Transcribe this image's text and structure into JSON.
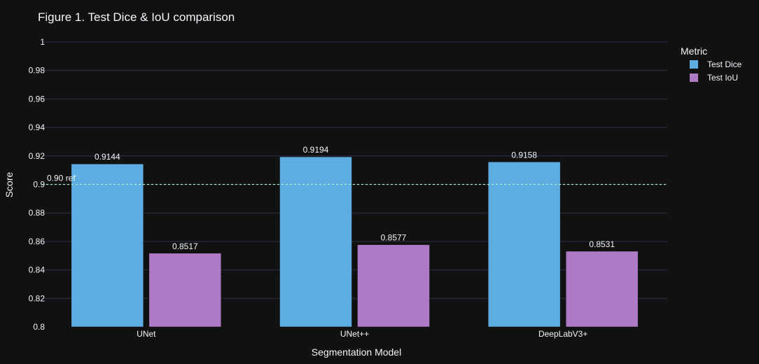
{
  "chart_data": {
    "type": "bar",
    "title": "Figure 1. Test Dice & IoU comparison",
    "xlabel": "Segmentation Model",
    "ylabel": "Score",
    "ylim": [
      0.8,
      1.0
    ],
    "yticks": [
      "0.8",
      "0.82",
      "0.84",
      "0.86",
      "0.88",
      "0.9",
      "0.92",
      "0.94",
      "0.96",
      "0.98",
      "1"
    ],
    "categories": [
      "UNet",
      "UNet++",
      "DeepLabV3+"
    ],
    "series": [
      {
        "name": "Test Dice",
        "values": [
          0.9144,
          0.9194,
          0.9158
        ],
        "labels": [
          "0.9144",
          "0.9194",
          "0.9158"
        ],
        "color": "#5dade2"
      },
      {
        "name": "Test IoU",
        "values": [
          0.8517,
          0.8577,
          0.8531
        ],
        "labels": [
          "0.8517",
          "0.8577",
          "0.8531"
        ],
        "color": "#af7ac5"
      }
    ],
    "reference_line": {
      "value": 0.9,
      "label": "0.90 ref",
      "color": "#a8f0c0",
      "style": "dashed"
    },
    "legend": {
      "title": "Metric",
      "position": "top-right"
    },
    "grid": true,
    "background": "#111111",
    "grid_color": "#283442"
  }
}
